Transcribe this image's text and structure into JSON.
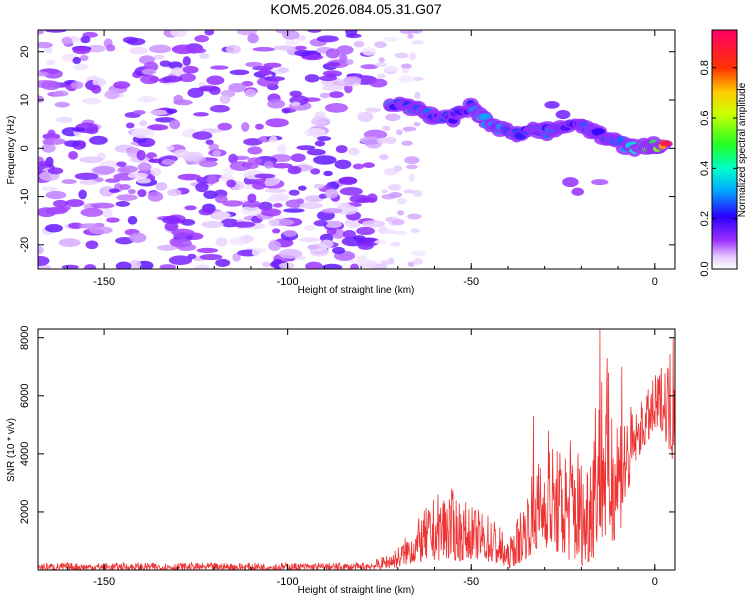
{
  "title": "KOM5.2026.084.05.31.G07",
  "chart_data": [
    {
      "type": "heatmap",
      "name": "spectrogram",
      "xlabel": "Height of straight line (km)",
      "ylabel": "Frequency (Hz)",
      "xlim": [
        -168,
        5.5
      ],
      "ylim": [
        -25,
        24.5
      ],
      "xticks": [
        -150,
        -100,
        -50,
        0
      ],
      "yticks": [
        -20,
        -10,
        0,
        10,
        20
      ],
      "colorbar": {
        "label": "Normalized spectral amplitude",
        "range": [
          0,
          0.95
        ],
        "ticks": [
          0.0,
          0.2,
          0.4,
          0.6,
          0.8
        ]
      },
      "noise_region": {
        "x": [
          -168,
          -75
        ],
        "y": [
          -25,
          24.5
        ],
        "amplitude_range": [
          0.02,
          0.17
        ]
      },
      "signal_track": [
        {
          "x": -72,
          "y": 9.5,
          "a": 0.3
        },
        {
          "x": -65,
          "y": 8.5,
          "a": 0.35
        },
        {
          "x": -60,
          "y": 6.5,
          "a": 0.3
        },
        {
          "x": -55,
          "y": 6.5,
          "a": 0.25
        },
        {
          "x": -50,
          "y": 8.5,
          "a": 0.3
        },
        {
          "x": -47,
          "y": 6,
          "a": 0.45
        },
        {
          "x": -43,
          "y": 4.5,
          "a": 0.35
        },
        {
          "x": -38,
          "y": 3,
          "a": 0.3
        },
        {
          "x": -33,
          "y": 3.5,
          "a": 0.3
        },
        {
          "x": -28,
          "y": 3.5,
          "a": 0.3
        },
        {
          "x": -22,
          "y": 5,
          "a": 0.25
        },
        {
          "x": -18,
          "y": 4,
          "a": 0.3
        },
        {
          "x": -15,
          "y": 3,
          "a": 0.25
        },
        {
          "x": -8,
          "y": 0.5,
          "a": 0.35
        },
        {
          "x": -3,
          "y": 0,
          "a": 0.7
        },
        {
          "x": 0,
          "y": 0.5,
          "a": 0.5
        },
        {
          "x": 3,
          "y": 1,
          "a": 0.9
        }
      ],
      "secondary_track": [
        {
          "x": -28,
          "y": 9,
          "a": 0.15
        },
        {
          "x": -25,
          "y": 7,
          "a": 0.15
        },
        {
          "x": -23,
          "y": -7,
          "a": 0.12
        },
        {
          "x": -21,
          "y": -9,
          "a": 0.12
        },
        {
          "x": -15,
          "y": -7,
          "a": 0.1
        }
      ]
    },
    {
      "type": "line",
      "name": "snr",
      "xlabel": "Height of straight line (km)",
      "ylabel": "SNR (10 * v/v)",
      "xlim": [
        -168,
        5.5
      ],
      "ylim": [
        0,
        8300
      ],
      "xticks": [
        -150,
        -100,
        -50,
        0
      ],
      "yticks": [
        2000,
        4000,
        6000,
        8000
      ],
      "line_color": "#ee3333",
      "envelope": [
        {
          "x": -168,
          "low": 0,
          "high": 250
        },
        {
          "x": -80,
          "low": 0,
          "high": 250
        },
        {
          "x": -75,
          "low": 30,
          "high": 400
        },
        {
          "x": -70,
          "low": 80,
          "high": 800
        },
        {
          "x": -67,
          "low": 200,
          "high": 1300
        },
        {
          "x": -62,
          "low": 300,
          "high": 2200
        },
        {
          "x": -57,
          "low": 350,
          "high": 3000
        },
        {
          "x": -53,
          "low": 300,
          "high": 2500
        },
        {
          "x": -50,
          "low": 400,
          "high": 2200
        },
        {
          "x": -46,
          "low": 300,
          "high": 2000
        },
        {
          "x": -43,
          "low": 150,
          "high": 1800
        },
        {
          "x": -40,
          "low": 50,
          "high": 900
        },
        {
          "x": -37,
          "low": 200,
          "high": 2000
        },
        {
          "x": -33,
          "low": 600,
          "high": 3500
        },
        {
          "x": -29,
          "low": 800,
          "high": 4500
        },
        {
          "x": -26,
          "low": 500,
          "high": 4200
        },
        {
          "x": -22,
          "low": 200,
          "high": 5000
        },
        {
          "x": -19,
          "low": 100,
          "high": 3500
        },
        {
          "x": -17,
          "low": 300,
          "high": 6000
        },
        {
          "x": -15,
          "low": 1000,
          "high": 8200
        },
        {
          "x": -12,
          "low": 800,
          "high": 6500
        },
        {
          "x": -9,
          "low": 1500,
          "high": 6000
        },
        {
          "x": -5,
          "low": 3800,
          "high": 5500
        },
        {
          "x": -2,
          "low": 4400,
          "high": 6200
        },
        {
          "x": 2,
          "low": 4800,
          "high": 7200
        },
        {
          "x": 5.5,
          "low": 3500,
          "high": 8000
        }
      ],
      "spikes": [
        {
          "x": -15,
          "y": 8300
        },
        {
          "x": -13,
          "y": 7300
        },
        {
          "x": -9,
          "y": 7000
        },
        {
          "x": 5,
          "y": 8000
        },
        {
          "x": -33,
          "y": 5300
        },
        {
          "x": -29,
          "y": 4800
        }
      ]
    }
  ]
}
